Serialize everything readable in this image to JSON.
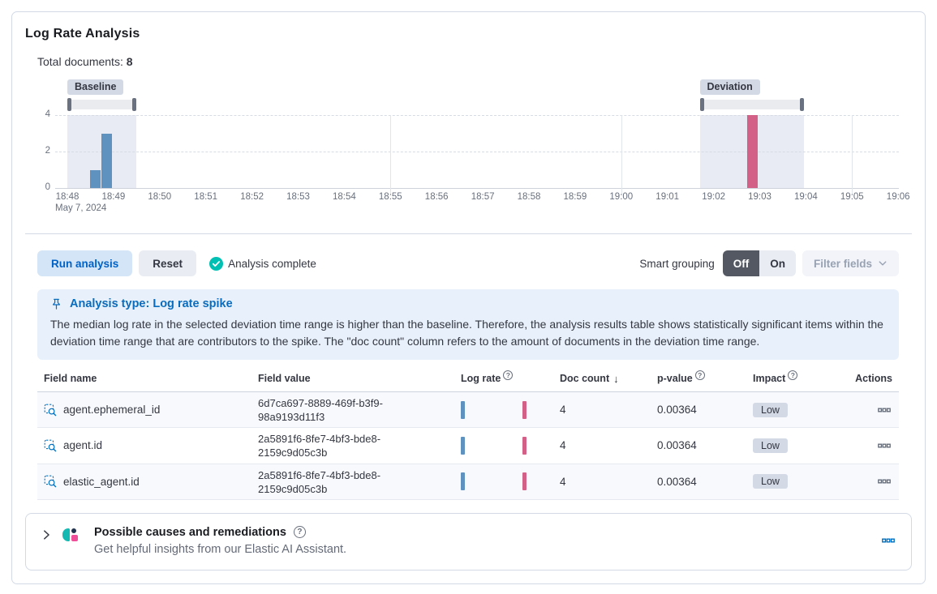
{
  "page": {
    "title": "Log Rate Analysis"
  },
  "summary": {
    "total_documents_label": "Total documents:",
    "total_documents_value": "8"
  },
  "colors": {
    "primary": "#0077cc",
    "success_check": "#00bfb3",
    "baseline_bar": "#6092C0",
    "deviation_bar": "#D36086",
    "window_shade": "#e8ebf4",
    "impact_badge_bg": "#d3dae6"
  },
  "chart_data": {
    "type": "bar",
    "title": "Document count histogram with baseline and deviation brushes",
    "xlabel": "",
    "ylabel": "",
    "x_ticks": [
      "18:48",
      "18:49",
      "18:50",
      "18:51",
      "18:52",
      "18:53",
      "18:54",
      "18:55",
      "18:56",
      "18:57",
      "18:58",
      "18:59",
      "19:00",
      "19:01",
      "19:02",
      "19:03",
      "19:04",
      "19:05",
      "19:06"
    ],
    "x_date_label": "May 7, 2024",
    "y_ticks": [
      0,
      2,
      4
    ],
    "ylim": [
      0,
      4
    ],
    "grid": true,
    "legend": "none",
    "gridline_minutes": [
      7,
      12,
      17
    ],
    "baseline": {
      "label": "Baseline",
      "start": 0.0,
      "end": 1.49,
      "color": "#6092C0",
      "bars": [
        {
          "t": 0.61,
          "value": 1
        },
        {
          "t": 0.85,
          "value": 3
        }
      ]
    },
    "deviation": {
      "label": "Deviation",
      "start": 13.7,
      "end": 15.95,
      "color": "#D36086",
      "bars": [
        {
          "t": 14.84,
          "value": 4
        }
      ]
    }
  },
  "controls": {
    "run_button": "Run analysis",
    "reset_button": "Reset",
    "status": "Analysis complete",
    "smart_grouping_label": "Smart grouping",
    "smart_grouping_off": "Off",
    "smart_grouping_on": "On",
    "smart_grouping_value": "Off",
    "filter_fields_button": "Filter fields"
  },
  "callout": {
    "title": "Analysis type: Log rate spike",
    "body": "The median log rate in the selected deviation time range is higher than the baseline. Therefore, the analysis results table shows statistically significant items within the deviation time range that are contributors to the spike. The \"doc count\" column refers to the amount of documents in the deviation time range."
  },
  "table": {
    "columns": [
      {
        "label": "Field name",
        "sortable": false
      },
      {
        "label": "Field value",
        "sortable": false
      },
      {
        "label": "Log rate",
        "help": true,
        "sortable": true
      },
      {
        "label": "Doc count",
        "sorted": "desc",
        "sortable": true
      },
      {
        "label": "p-value",
        "help": true,
        "sortable": true
      },
      {
        "label": "Impact",
        "help": true,
        "sortable": true
      },
      {
        "label": "Actions",
        "align": "right",
        "sortable": false
      }
    ],
    "rows": [
      {
        "field_name": "agent.ephemeral_id",
        "field_value": "6d7ca697-8889-469f-b3f9-98a9193d11f3",
        "doc_count": "4",
        "p_value": "0.00364",
        "impact": "Low"
      },
      {
        "field_name": "agent.id",
        "field_value": "2a5891f6-8fe7-4bf3-bde8-2159c9d05c3b",
        "doc_count": "4",
        "p_value": "0.00364",
        "impact": "Low"
      },
      {
        "field_name": "elastic_agent.id",
        "field_value": "2a5891f6-8fe7-4bf3-bde8-2159c9d05c3b",
        "doc_count": "4",
        "p_value": "0.00364",
        "impact": "Low"
      }
    ]
  },
  "assistant_panel": {
    "title": "Possible causes and remediations",
    "subtitle": "Get helpful insights from our Elastic AI Assistant."
  }
}
